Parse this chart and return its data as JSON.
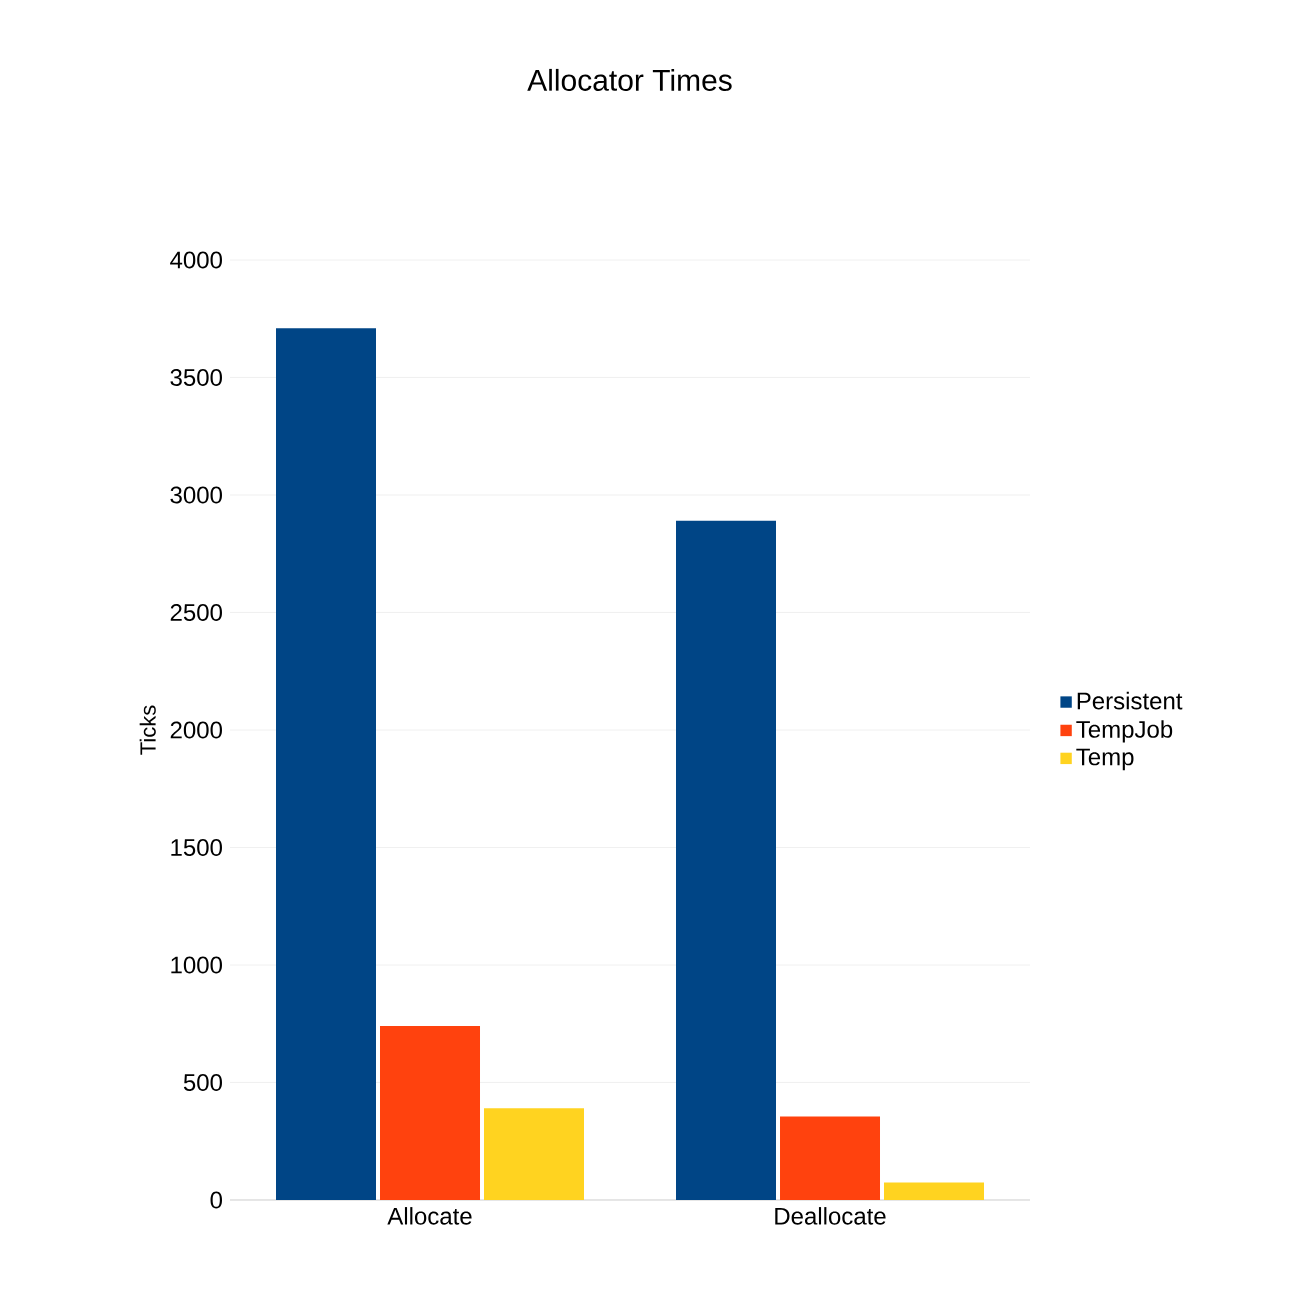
{
  "chart_data": {
    "type": "bar",
    "title": "Allocator Times",
    "ylabel": "Ticks",
    "categories": [
      "Allocate",
      "Deallocate"
    ],
    "series": [
      {
        "name": "Persistent",
        "color": "#004586",
        "values": [
          3710,
          2890
        ]
      },
      {
        "name": "TempJob",
        "color": "#ff420e",
        "values": [
          740,
          355
        ]
      },
      {
        "name": "Temp",
        "color": "#ffd320",
        "values": [
          390,
          75
        ]
      }
    ],
    "ylim": [
      0,
      4000
    ],
    "yticks": [
      0,
      500,
      1000,
      1500,
      2000,
      2500,
      3000,
      3500,
      4000
    ],
    "grid": "y",
    "legend": "right"
  }
}
